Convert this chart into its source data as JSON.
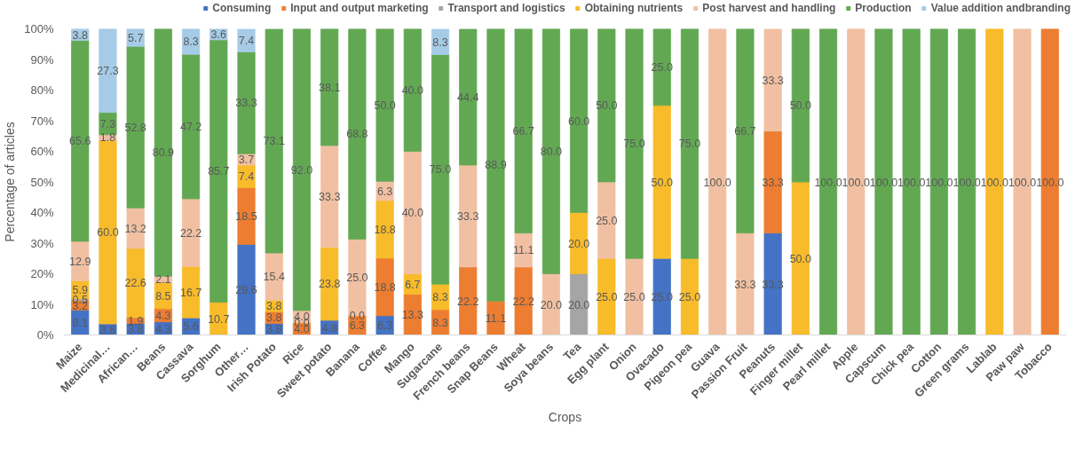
{
  "chart_data": {
    "type": "bar",
    "stacked": true,
    "xlabel": "Crops",
    "ylabel": "Percentage of articles",
    "categories": [
      "Maize",
      "Medicinal…",
      "African…",
      "Beans",
      "Cassava",
      "Sorghum",
      "Other…",
      "Irish Potato",
      "Rice",
      "Sweet potato",
      "Banana",
      "Coffee",
      "Mango",
      "Sugarcane",
      "French beans",
      "Snap Beans",
      "Wheat",
      "Soya beans",
      "Tea",
      "Egg plant",
      "Onion",
      "Ovacado",
      "Pigeon pea",
      "Guava",
      "Passion Fruit",
      "Peanuts",
      "Finger millet",
      "Pearl millet",
      "Apple",
      "Capscum",
      "Chick pea",
      "Cotton",
      "Green grams",
      "Lablab",
      "Paw paw",
      "Tobacco"
    ],
    "series": [
      {
        "name": "Consuming",
        "color": "#4472c4",
        "values": [
          8.1,
          3.6,
          3.8,
          4.3,
          5.6,
          null,
          29.6,
          3.8,
          null,
          4.8,
          null,
          6.3,
          null,
          null,
          null,
          null,
          null,
          null,
          null,
          null,
          null,
          25.0,
          null,
          null,
          null,
          33.3,
          null,
          null,
          null,
          null,
          null,
          null,
          null,
          null,
          null,
          null
        ],
        "value_labels": [
          "8.1",
          "3.6",
          "3.8",
          "4.3",
          "5.6",
          null,
          "29.6",
          "3.8",
          null,
          "4.8",
          null,
          "6.3",
          null,
          null,
          null,
          null,
          null,
          null,
          null,
          null,
          null,
          "25.0",
          null,
          null,
          null,
          "33.3",
          null,
          null,
          null,
          null,
          null,
          null,
          null,
          null,
          null,
          null
        ]
      },
      {
        "name": "Input and output marketing",
        "color": "#ed7d31",
        "values": [
          3.2,
          null,
          1.9,
          4.3,
          null,
          null,
          18.5,
          3.8,
          4.0,
          null,
          6.3,
          18.8,
          13.3,
          8.3,
          22.2,
          11.1,
          22.2,
          null,
          null,
          null,
          null,
          null,
          null,
          null,
          null,
          33.3,
          null,
          null,
          null,
          null,
          null,
          null,
          null,
          null,
          null,
          100.0
        ],
        "value_labels": [
          "3.2",
          null,
          "1.9",
          "4.3",
          null,
          null,
          "18.5",
          "3.8",
          "4.0",
          null,
          "6.3",
          "18.8",
          "13.3",
          "8.3",
          "22.2",
          "11.1",
          "22.2",
          null,
          null,
          null,
          null,
          null,
          null,
          null,
          null,
          "33.3",
          null,
          null,
          null,
          null,
          null,
          null,
          null,
          null,
          null,
          "100.0"
        ]
      },
      {
        "name": "Transport and logistics",
        "color": "#a5a5a5",
        "values": [
          0.5,
          null,
          null,
          null,
          null,
          null,
          null,
          null,
          null,
          null,
          null,
          null,
          null,
          null,
          null,
          null,
          null,
          null,
          20.0,
          null,
          null,
          null,
          null,
          null,
          null,
          null,
          null,
          null,
          null,
          null,
          null,
          null,
          null,
          null,
          null,
          null
        ],
        "value_labels": [
          "0.5",
          null,
          null,
          null,
          null,
          null,
          null,
          null,
          null,
          null,
          null,
          null,
          null,
          null,
          null,
          null,
          null,
          null,
          "20.0",
          null,
          null,
          null,
          null,
          null,
          null,
          null,
          null,
          null,
          null,
          null,
          null,
          null,
          null,
          null,
          null,
          null
        ]
      },
      {
        "name": "Obtaining nutrients",
        "color": "#f8bb2a",
        "values": [
          5.9,
          60.0,
          22.6,
          8.5,
          16.7,
          10.7,
          7.4,
          3.8,
          0.0,
          23.8,
          0.0,
          18.8,
          6.7,
          8.3,
          null,
          null,
          null,
          null,
          20.0,
          25.0,
          null,
          50.0,
          25.0,
          null,
          null,
          null,
          50.0,
          null,
          null,
          null,
          null,
          null,
          null,
          100.0,
          null,
          null
        ],
        "value_labels": [
          "5.9",
          "60.0",
          "22.6",
          "8.5",
          "16.7",
          "10.7",
          "7.4",
          "3.8",
          "0.0",
          "23.8",
          "0.0",
          "18.8",
          "6.7",
          "8.3",
          null,
          null,
          null,
          null,
          "20.0",
          "25.0",
          null,
          "50.0",
          "25.0",
          null,
          null,
          null,
          "50.0",
          null,
          null,
          null,
          null,
          null,
          null,
          "100.0",
          null,
          null
        ]
      },
      {
        "name": "Post harvest and handling",
        "color": "#f1c0a2",
        "values": [
          12.9,
          1.8,
          13.2,
          2.1,
          22.2,
          null,
          3.7,
          15.4,
          4.0,
          33.3,
          25.0,
          6.3,
          40.0,
          null,
          33.3,
          null,
          11.1,
          20.0,
          null,
          25.0,
          25.0,
          null,
          null,
          100.0,
          33.3,
          33.3,
          null,
          null,
          100.0,
          null,
          null,
          null,
          null,
          null,
          100.0,
          null
        ],
        "value_labels": [
          "12.9",
          "1.8",
          "13.2",
          "2.1",
          "22.2",
          null,
          "3.7",
          "15.4",
          "4.0",
          "33.3",
          "25.0",
          "6.3",
          "40.0",
          null,
          "33.3",
          null,
          "11.1",
          "20.0",
          null,
          "25.0",
          "25.0",
          null,
          null,
          "100.0",
          "33.3",
          "33.3",
          null,
          null,
          "100.0",
          null,
          null,
          null,
          null,
          null,
          "100.0",
          null
        ]
      },
      {
        "name": "Production",
        "color": "#62a853",
        "values": [
          65.6,
          7.3,
          52.8,
          80.9,
          47.2,
          85.7,
          33.3,
          73.1,
          92.0,
          38.1,
          68.8,
          50.0,
          40.0,
          75.0,
          44.4,
          88.9,
          66.7,
          80.0,
          60.0,
          50.0,
          75.0,
          25.0,
          75.0,
          null,
          66.7,
          null,
          50.0,
          100.0,
          null,
          100.0,
          100.0,
          100.0,
          100.0,
          null,
          null,
          null
        ],
        "value_labels": [
          "65.6",
          "7.3",
          "52.8",
          "80.9",
          "47.2",
          "85.7",
          "33.3",
          "73.1",
          "92.0",
          "38.1",
          "68.8",
          "50.0",
          "40.0",
          "75.0",
          "44.4",
          "88.9",
          "66.7",
          "80.0",
          "60.0",
          "50.0",
          "75.0",
          "25.0",
          "75.0",
          null,
          "66.7",
          null,
          "50.0",
          "100.0",
          null,
          "100.0",
          "100.0",
          "100.0",
          "100.0",
          null,
          null,
          null
        ]
      },
      {
        "name": "Value addition andbranding",
        "color": "#a6cbe6",
        "values": [
          3.8,
          27.3,
          5.7,
          null,
          8.3,
          3.6,
          7.4,
          null,
          null,
          null,
          null,
          null,
          null,
          8.3,
          null,
          null,
          null,
          null,
          null,
          null,
          null,
          null,
          null,
          null,
          null,
          null,
          null,
          null,
          null,
          null,
          null,
          null,
          null,
          null,
          null,
          null
        ],
        "value_labels": [
          "3.8",
          "27.3",
          "5.7",
          null,
          "8.3",
          "3.6",
          "7.4",
          null,
          null,
          null,
          null,
          null,
          null,
          "8.3",
          null,
          null,
          null,
          null,
          null,
          null,
          null,
          null,
          null,
          null,
          null,
          null,
          null,
          null,
          null,
          null,
          null,
          null,
          null,
          null,
          null,
          null
        ]
      }
    ],
    "ylim": [
      0,
      100
    ],
    "yticks": [
      {
        "value": 0,
        "label": "0%"
      },
      {
        "value": 10,
        "label": "10%"
      },
      {
        "value": 20,
        "label": "20%"
      },
      {
        "value": 30,
        "label": "30%"
      },
      {
        "value": 40,
        "label": "40%"
      },
      {
        "value": 50,
        "label": "50%"
      },
      {
        "value": 60,
        "label": "60%"
      },
      {
        "value": 70,
        "label": "70%"
      },
      {
        "value": 80,
        "label": "80%"
      },
      {
        "value": 90,
        "label": "90%"
      },
      {
        "value": 100,
        "label": "100%"
      }
    ],
    "legend": "top",
    "grid": false
  }
}
